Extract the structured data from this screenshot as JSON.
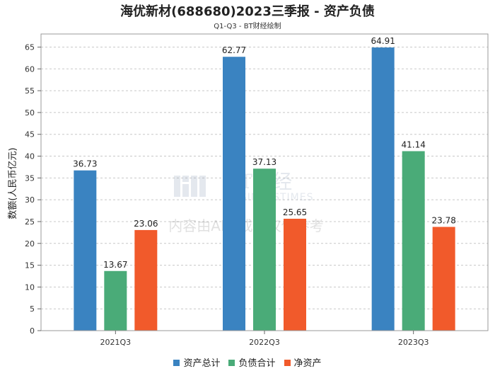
{
  "chart_data": {
    "type": "bar",
    "title": "海优新材(688680)2023三季报 - 资产负债",
    "subtitle": "Q1-Q3 - BT财经绘制",
    "xlabel": "",
    "ylabel": "数额(人民币亿元)",
    "ylim": [
      0,
      68
    ],
    "yticks": [
      0,
      5,
      10,
      15,
      20,
      25,
      30,
      35,
      40,
      45,
      50,
      55,
      60,
      65
    ],
    "grid": true,
    "legend_position": "bottom",
    "categories": [
      "2021Q3",
      "2022Q3",
      "2023Q3"
    ],
    "series": [
      {
        "name": "资产总计",
        "color": "#3a83c1",
        "values": [
          36.73,
          62.77,
          64.91
        ]
      },
      {
        "name": "负债合计",
        "color": "#4aab78",
        "values": [
          13.67,
          37.13,
          41.14
        ]
      },
      {
        "name": "净资产",
        "color": "#f15a2b",
        "values": [
          23.06,
          25.65,
          23.78
        ]
      }
    ]
  },
  "watermark": {
    "logo_text": "BT财经",
    "logo_sub": "BUSINESSTIMES",
    "notice": "内容由AI生成，仅供参考"
  }
}
